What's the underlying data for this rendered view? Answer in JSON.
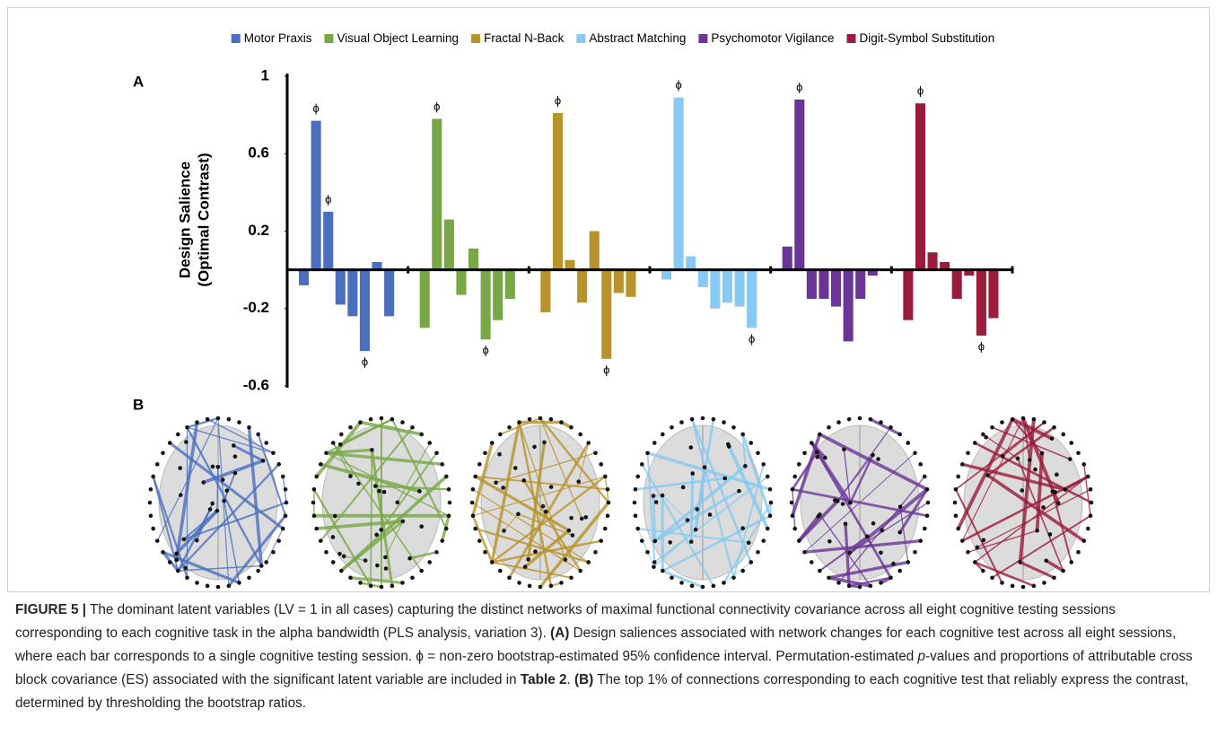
{
  "chart_data": {
    "type": "bar",
    "panel_label": "A",
    "y_label": [
      "Design Salience",
      "(Optimal Contrast)"
    ],
    "ylim": [
      -0.6,
      1
    ],
    "yticks": [
      -0.6,
      -0.2,
      0.2,
      0.6,
      1
    ],
    "marker_symbol": "ϕ",
    "series": [
      {
        "name": "Motor Praxis",
        "color": "#4a6fbf",
        "values": [
          -0.08,
          0.77,
          0.3,
          -0.18,
          -0.24,
          -0.42,
          0.04,
          -0.24
        ],
        "significant": [
          false,
          true,
          true,
          false,
          false,
          true,
          false,
          false
        ]
      },
      {
        "name": "Visual Object Learning",
        "color": "#77a845",
        "values": [
          -0.3,
          0.78,
          0.26,
          -0.13,
          0.11,
          -0.36,
          -0.26,
          -0.15
        ],
        "significant": [
          false,
          true,
          false,
          false,
          false,
          true,
          false,
          false
        ]
      },
      {
        "name": "Fractal N-Back",
        "color": "#b8922a",
        "values": [
          -0.22,
          0.81,
          0.05,
          -0.17,
          0.2,
          -0.46,
          -0.12,
          -0.14
        ],
        "significant": [
          false,
          true,
          false,
          false,
          false,
          true,
          false,
          false
        ]
      },
      {
        "name": "Abstract Matching",
        "color": "#87c9f2",
        "values": [
          -0.05,
          0.89,
          0.07,
          -0.09,
          -0.2,
          -0.17,
          -0.19,
          -0.3
        ],
        "significant": [
          false,
          true,
          false,
          false,
          false,
          false,
          false,
          true
        ]
      },
      {
        "name": "Psychomotor Vigilance",
        "color": "#6a3596",
        "values": [
          0.12,
          0.88,
          -0.15,
          -0.15,
          -0.19,
          -0.37,
          -0.15,
          -0.03
        ],
        "significant": [
          false,
          true,
          false,
          false,
          false,
          false,
          false,
          false
        ]
      },
      {
        "name": "Digit-Symbol Substitution",
        "color": "#9b1b3a",
        "values": [
          -0.26,
          0.86,
          0.09,
          0.04,
          -0.15,
          -0.03,
          -0.34,
          -0.25
        ],
        "significant": [
          false,
          true,
          false,
          false,
          false,
          false,
          true,
          false
        ]
      }
    ]
  },
  "panel_b": {
    "label": "B"
  },
  "caption": [
    "FIGURE 5 |",
    " The dominant latent variables (LV = 1 in all cases) capturing the distinct networks of maximal functional connectivity covariance across all eight cognitive testing sessions corresponding to each cognitive task in the alpha bandwidth (PLS analysis, variation 3). ",
    "(A)",
    " Design saliences associated with network changes for each cognitive test across all eight sessions, where each bar corresponds to a single cognitive testing session. ϕ = non-zero bootstrap-estimated 95% confidence interval. Permutation-estimated ",
    "p",
    "-values and proportions of attributable cross block covariance (ES) associated with the significant latent variable are included in ",
    "Table 2",
    ". ",
    "(B)",
    " The top 1% of connections corresponding to each cognitive test that reliably express the contrast, determined by thresholding the bootstrap ratios."
  ]
}
